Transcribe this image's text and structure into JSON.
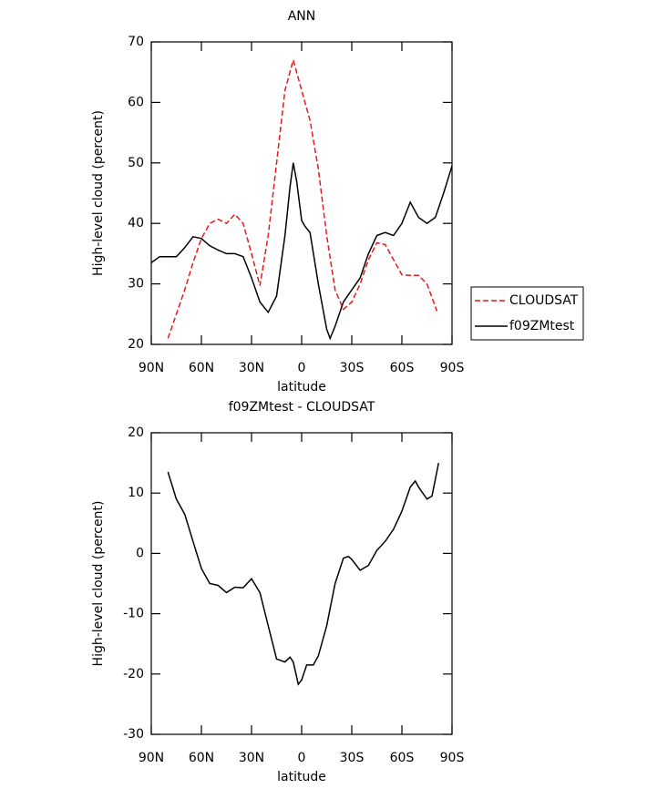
{
  "chart_data": [
    {
      "type": "line",
      "title": "ANN",
      "x_label": "latitude",
      "y_label": "High-level cloud (percent)",
      "xlim": [
        90,
        -90
      ],
      "xticks": [
        {
          "value": 90,
          "label": "90N"
        },
        {
          "value": 60,
          "label": "60N"
        },
        {
          "value": 30,
          "label": "30N"
        },
        0,
        {
          "value": -30,
          "label": "30S"
        },
        {
          "value": -60,
          "label": "60S"
        },
        {
          "value": -90,
          "label": "90S"
        }
      ],
      "ylim": [
        20,
        70
      ],
      "yticks": [
        20,
        30,
        40,
        50,
        60,
        70
      ],
      "legend": "right",
      "series": [
        {
          "name": "CLOUDSAT",
          "color": "#e41a1c",
          "dash": true,
          "x": [
            80,
            75,
            70,
            65,
            60,
            55,
            50,
            45,
            40,
            35,
            30,
            25,
            20,
            15,
            10,
            5,
            0,
            -5,
            -10,
            -15,
            -20,
            -25,
            -30,
            -35,
            -40,
            -45,
            -50,
            -55,
            -60,
            -65,
            -70,
            -75,
            -81
          ],
          "values": [
            21,
            25,
            29,
            33.5,
            37.5,
            40,
            40.7,
            40,
            41.5,
            40,
            35,
            29.7,
            38,
            50,
            62,
            67,
            62,
            57,
            49,
            38,
            29,
            25.8,
            27,
            30,
            34,
            36.8,
            36.5,
            34,
            31.5,
            31.4,
            31.4,
            30,
            25.5
          ]
        },
        {
          "name": "f09ZMtest",
          "color": "#000000",
          "dash": false,
          "x": [
            90,
            85,
            80,
            75,
            70,
            65,
            60,
            55,
            50,
            45,
            40,
            35,
            30,
            25,
            20,
            15,
            10,
            7,
            5,
            3,
            0,
            -2,
            -5,
            -10,
            -15,
            -17,
            -20,
            -25,
            -30,
            -35,
            -40,
            -45,
            -50,
            -55,
            -60,
            -65,
            -70,
            -75,
            -80,
            -85,
            -90
          ],
          "values": [
            33.5,
            34.5,
            34.5,
            34.5,
            36,
            37.8,
            37.5,
            36.3,
            35.6,
            35,
            35,
            34.5,
            31,
            27,
            25.3,
            28,
            38,
            46,
            50,
            47,
            40.5,
            39.5,
            38.5,
            30,
            22.5,
            21,
            23,
            27,
            29,
            31,
            35,
            38,
            38.5,
            38,
            40,
            43.5,
            41,
            40,
            41,
            45,
            49.5
          ]
        }
      ]
    },
    {
      "type": "line",
      "title": "f09ZMtest - CLOUDSAT",
      "x_label": "latitude",
      "y_label": "High-level cloud (percent)",
      "xlim": [
        90,
        -90
      ],
      "xticks": [
        {
          "value": 90,
          "label": "90N"
        },
        {
          "value": 60,
          "label": "60N"
        },
        {
          "value": 30,
          "label": "30N"
        },
        0,
        {
          "value": -30,
          "label": "30S"
        },
        {
          "value": -60,
          "label": "60S"
        },
        {
          "value": -90,
          "label": "90S"
        }
      ],
      "ylim": [
        -30,
        20
      ],
      "yticks": [
        -30,
        -20,
        -10,
        0,
        10,
        20
      ],
      "series": [
        {
          "color": "#000000",
          "dash": false,
          "x": [
            80,
            75,
            70,
            65,
            60,
            55,
            50,
            45,
            40,
            35,
            30,
            25,
            20,
            15,
            10,
            7,
            5,
            2,
            0,
            -3,
            -7,
            -10,
            -15,
            -20,
            -25,
            -28,
            -30,
            -35,
            -40,
            -45,
            -50,
            -55,
            -60,
            -65,
            -68,
            -70,
            -75,
            -78,
            -82
          ],
          "values": [
            13.5,
            9,
            6.5,
            2,
            -2.5,
            -5,
            -5.3,
            -6.5,
            -5.6,
            -5.7,
            -4.2,
            -6.5,
            -12,
            -17.5,
            -18,
            -17.2,
            -18,
            -21.7,
            -21,
            -18.5,
            -18.5,
            -17,
            -12,
            -5,
            -0.8,
            -0.5,
            -1,
            -2.8,
            -2,
            0.5,
            2,
            4,
            7,
            11,
            12,
            11,
            9,
            9.5,
            15
          ]
        }
      ]
    }
  ]
}
